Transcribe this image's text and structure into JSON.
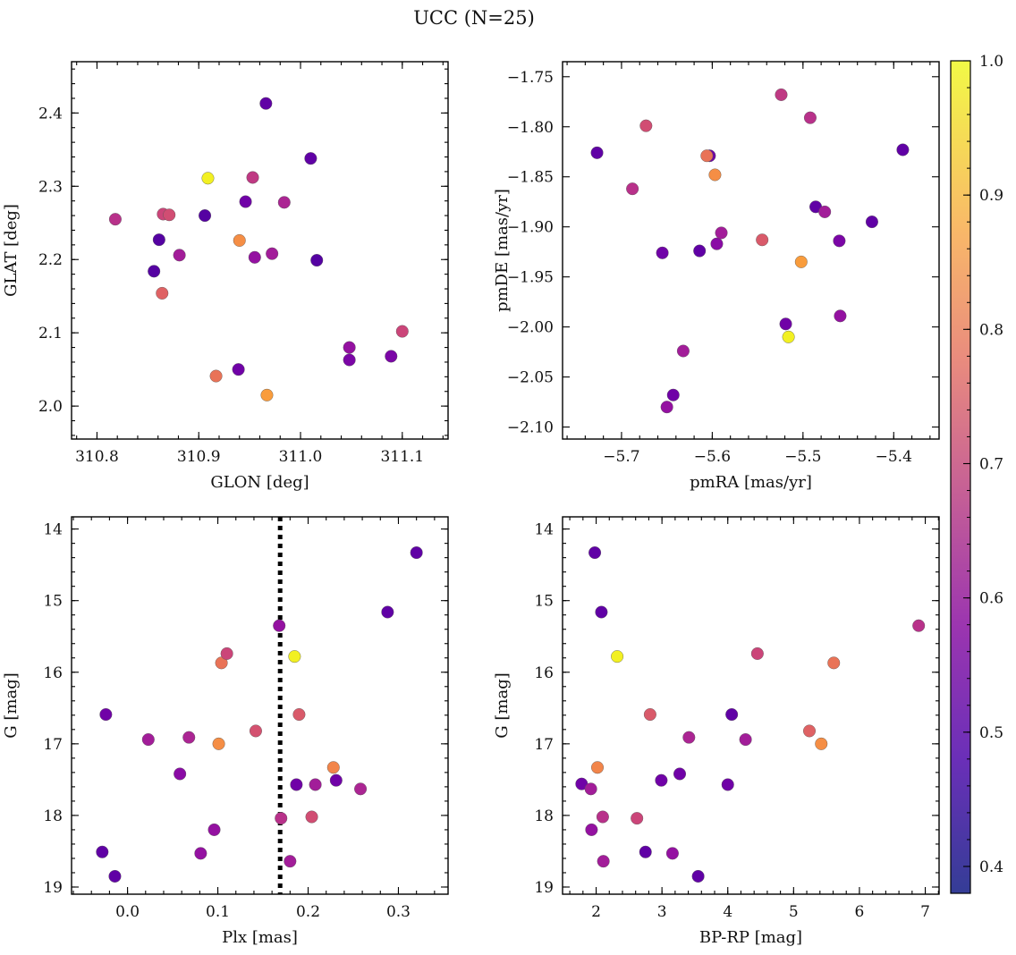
{
  "figure": {
    "title": "UCC (N=25)"
  },
  "colorbar": {
    "colormap": "plasma",
    "range": [
      0.38,
      1.0
    ],
    "ticks": [
      "0.4",
      "0.5",
      "0.6",
      "0.7",
      "0.8",
      "0.9",
      "1.0"
    ]
  },
  "chart_data": [
    {
      "type": "scatter",
      "id": "p1",
      "xlabel": "GLON [deg]",
      "ylabel": "GLAT [deg]",
      "xlim": [
        310.775,
        311.145
      ],
      "ylim": [
        1.955,
        2.47
      ],
      "y_inverted": false,
      "xticks": [
        "310.8",
        "310.9",
        "311.0",
        "311.1"
      ],
      "yticks": [
        "2.0",
        "2.1",
        "2.2",
        "2.3",
        "2.4"
      ],
      "points": [
        {
          "x": 310.818,
          "y": 2.255,
          "c": 0.6
        },
        {
          "x": 310.856,
          "y": 2.184,
          "c": 0.4
        },
        {
          "x": 310.861,
          "y": 2.227,
          "c": 0.4
        },
        {
          "x": 310.864,
          "y": 2.154,
          "c": 0.72
        },
        {
          "x": 310.865,
          "y": 2.262,
          "c": 0.65
        },
        {
          "x": 310.871,
          "y": 2.261,
          "c": 0.67
        },
        {
          "x": 310.881,
          "y": 2.206,
          "c": 0.55
        },
        {
          "x": 310.906,
          "y": 2.26,
          "c": 0.4
        },
        {
          "x": 310.909,
          "y": 2.311,
          "c": 1.0
        },
        {
          "x": 310.917,
          "y": 2.041,
          "c": 0.76
        },
        {
          "x": 310.939,
          "y": 2.05,
          "c": 0.45
        },
        {
          "x": 310.94,
          "y": 2.226,
          "c": 0.82
        },
        {
          "x": 310.946,
          "y": 2.279,
          "c": 0.45
        },
        {
          "x": 310.953,
          "y": 2.312,
          "c": 0.62
        },
        {
          "x": 310.955,
          "y": 2.203,
          "c": 0.52
        },
        {
          "x": 310.966,
          "y": 2.413,
          "c": 0.42
        },
        {
          "x": 310.967,
          "y": 2.015,
          "c": 0.85
        },
        {
          "x": 310.972,
          "y": 2.208,
          "c": 0.55
        },
        {
          "x": 310.984,
          "y": 2.278,
          "c": 0.57
        },
        {
          "x": 311.01,
          "y": 2.338,
          "c": 0.42
        },
        {
          "x": 311.016,
          "y": 2.199,
          "c": 0.4
        },
        {
          "x": 311.048,
          "y": 2.08,
          "c": 0.52
        },
        {
          "x": 311.048,
          "y": 2.063,
          "c": 0.47
        },
        {
          "x": 311.089,
          "y": 2.068,
          "c": 0.47
        },
        {
          "x": 311.1,
          "y": 2.102,
          "c": 0.65
        }
      ]
    },
    {
      "type": "scatter",
      "id": "p2",
      "xlabel": "pmRA [mas/yr]",
      "ylabel": "pmDE [mas/yr]",
      "xlim": [
        -5.765,
        -5.35
      ],
      "ylim": [
        -2.112,
        -1.735
      ],
      "y_inverted": false,
      "xticks": [
        "−5.7",
        "−5.6",
        "−5.5",
        "−5.4"
      ],
      "yticks": [
        "−1.75",
        "−1.80",
        "−1.85",
        "−1.90",
        "−1.95",
        "−2.00",
        "−2.05",
        "−2.10"
      ],
      "points": [
        {
          "x": -5.727,
          "y": -1.826,
          "c": 0.42
        },
        {
          "x": -5.688,
          "y": -1.862,
          "c": 0.6
        },
        {
          "x": -5.673,
          "y": -1.799,
          "c": 0.67
        },
        {
          "x": -5.655,
          "y": -1.926,
          "c": 0.45
        },
        {
          "x": -5.65,
          "y": -2.08,
          "c": 0.52
        },
        {
          "x": -5.643,
          "y": -2.068,
          "c": 0.45
        },
        {
          "x": -5.632,
          "y": -2.024,
          "c": 0.55
        },
        {
          "x": -5.614,
          "y": -1.924,
          "c": 0.42
        },
        {
          "x": -5.603,
          "y": -1.829,
          "c": 0.45
        },
        {
          "x": -5.606,
          "y": -1.829,
          "c": 0.76
        },
        {
          "x": -5.597,
          "y": -1.848,
          "c": 0.82
        },
        {
          "x": -5.595,
          "y": -1.917,
          "c": 0.5
        },
        {
          "x": -5.59,
          "y": -1.906,
          "c": 0.55
        },
        {
          "x": -5.545,
          "y": -1.913,
          "c": 0.7
        },
        {
          "x": -5.524,
          "y": -1.768,
          "c": 0.62
        },
        {
          "x": -5.519,
          "y": -1.997,
          "c": 0.45
        },
        {
          "x": -5.516,
          "y": -2.01,
          "c": 1.0
        },
        {
          "x": -5.502,
          "y": -1.935,
          "c": 0.85
        },
        {
          "x": -5.492,
          "y": -1.791,
          "c": 0.6
        },
        {
          "x": -5.486,
          "y": -1.88,
          "c": 0.42
        },
        {
          "x": -5.476,
          "y": -1.885,
          "c": 0.55
        },
        {
          "x": -5.46,
          "y": -1.914,
          "c": 0.47
        },
        {
          "x": -5.459,
          "y": -1.989,
          "c": 0.52
        },
        {
          "x": -5.424,
          "y": -1.895,
          "c": 0.42
        },
        {
          "x": -5.39,
          "y": -1.823,
          "c": 0.42
        }
      ]
    },
    {
      "type": "scatter",
      "id": "p3",
      "xlabel": "Plx [mas]",
      "ylabel": "G [mag]",
      "xlim": [
        -0.062,
        0.355
      ],
      "ylim": [
        13.83,
        19.1
      ],
      "y_inverted": true,
      "xticks": [
        "0.0",
        "0.1",
        "0.2",
        "0.3"
      ],
      "yticks": [
        "14",
        "15",
        "16",
        "17",
        "18",
        "19"
      ],
      "vline": {
        "x": 0.169,
        "style": "dotted"
      },
      "points": [
        {
          "x": -0.028,
          "y": 18.51,
          "c": 0.42
        },
        {
          "x": -0.024,
          "y": 16.59,
          "c": 0.45
        },
        {
          "x": -0.014,
          "y": 18.85,
          "c": 0.42
        },
        {
          "x": 0.023,
          "y": 16.94,
          "c": 0.55
        },
        {
          "x": 0.058,
          "y": 17.42,
          "c": 0.5
        },
        {
          "x": 0.068,
          "y": 16.91,
          "c": 0.57
        },
        {
          "x": 0.081,
          "y": 18.53,
          "c": 0.52
        },
        {
          "x": 0.096,
          "y": 18.2,
          "c": 0.52
        },
        {
          "x": 0.101,
          "y": 17.0,
          "c": 0.82
        },
        {
          "x": 0.104,
          "y": 15.87,
          "c": 0.76
        },
        {
          "x": 0.11,
          "y": 15.74,
          "c": 0.65
        },
        {
          "x": 0.142,
          "y": 16.82,
          "c": 0.68
        },
        {
          "x": 0.168,
          "y": 15.35,
          "c": 0.52
        },
        {
          "x": 0.17,
          "y": 18.04,
          "c": 0.6
        },
        {
          "x": 0.18,
          "y": 18.64,
          "c": 0.55
        },
        {
          "x": 0.185,
          "y": 15.78,
          "c": 1.0
        },
        {
          "x": 0.187,
          "y": 17.57,
          "c": 0.45
        },
        {
          "x": 0.19,
          "y": 16.59,
          "c": 0.7
        },
        {
          "x": 0.204,
          "y": 18.02,
          "c": 0.67
        },
        {
          "x": 0.208,
          "y": 17.57,
          "c": 0.55
        },
        {
          "x": 0.228,
          "y": 17.33,
          "c": 0.8
        },
        {
          "x": 0.231,
          "y": 17.51,
          "c": 0.45
        },
        {
          "x": 0.258,
          "y": 17.63,
          "c": 0.57
        },
        {
          "x": 0.288,
          "y": 15.16,
          "c": 0.42
        },
        {
          "x": 0.32,
          "y": 14.33,
          "c": 0.42
        }
      ]
    },
    {
      "type": "scatter",
      "id": "p4",
      "xlabel": "BP-RP [mag]",
      "ylabel": "G [mag]",
      "xlim": [
        1.49,
        7.21
      ],
      "ylim": [
        13.83,
        19.1
      ],
      "y_inverted": true,
      "xticks": [
        "2",
        "3",
        "4",
        "5",
        "6",
        "7"
      ],
      "yticks": [
        "14",
        "15",
        "16",
        "17",
        "18",
        "19"
      ],
      "points": [
        {
          "x": 1.78,
          "y": 17.56,
          "c": 0.45
        },
        {
          "x": 1.92,
          "y": 17.63,
          "c": 0.55
        },
        {
          "x": 1.93,
          "y": 18.2,
          "c": 0.52
        },
        {
          "x": 1.98,
          "y": 14.33,
          "c": 0.42
        },
        {
          "x": 2.02,
          "y": 17.33,
          "c": 0.8
        },
        {
          "x": 2.08,
          "y": 15.16,
          "c": 0.42
        },
        {
          "x": 2.1,
          "y": 18.02,
          "c": 0.6
        },
        {
          "x": 2.11,
          "y": 18.64,
          "c": 0.55
        },
        {
          "x": 2.32,
          "y": 15.78,
          "c": 1.0
        },
        {
          "x": 2.62,
          "y": 18.04,
          "c": 0.65
        },
        {
          "x": 2.75,
          "y": 18.51,
          "c": 0.42
        },
        {
          "x": 2.82,
          "y": 16.59,
          "c": 0.7
        },
        {
          "x": 2.99,
          "y": 17.51,
          "c": 0.45
        },
        {
          "x": 3.16,
          "y": 18.53,
          "c": 0.52
        },
        {
          "x": 3.27,
          "y": 17.42,
          "c": 0.45
        },
        {
          "x": 3.41,
          "y": 16.91,
          "c": 0.57
        },
        {
          "x": 3.55,
          "y": 18.85,
          "c": 0.42
        },
        {
          "x": 4.0,
          "y": 17.57,
          "c": 0.45
        },
        {
          "x": 4.06,
          "y": 16.59,
          "c": 0.42
        },
        {
          "x": 4.27,
          "y": 16.94,
          "c": 0.55
        },
        {
          "x": 4.45,
          "y": 15.74,
          "c": 0.65
        },
        {
          "x": 5.24,
          "y": 16.82,
          "c": 0.72
        },
        {
          "x": 5.42,
          "y": 17.0,
          "c": 0.82
        },
        {
          "x": 5.61,
          "y": 15.87,
          "c": 0.76
        },
        {
          "x": 6.9,
          "y": 15.35,
          "c": 0.6
        }
      ]
    }
  ]
}
